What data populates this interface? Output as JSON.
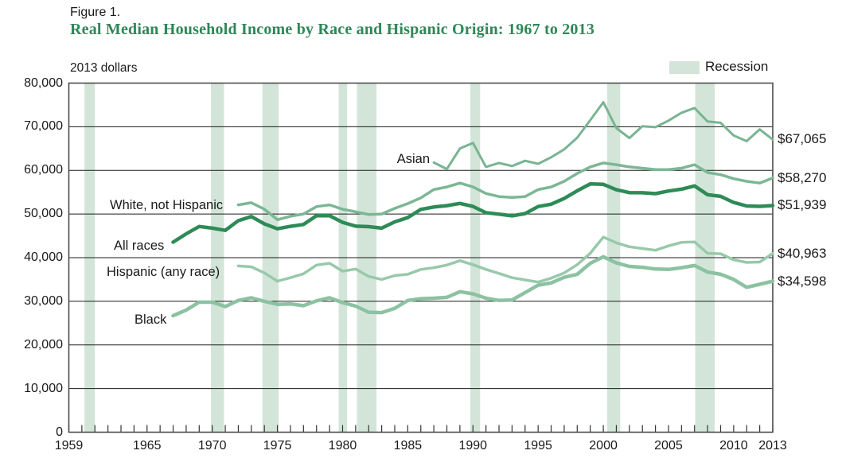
{
  "figure": {
    "label": "Figure 1.",
    "title": "Real Median Household Income by Race and Hispanic Origin: 1967 to 2013"
  },
  "legend": {
    "recession_label": "Recession"
  },
  "colors": {
    "title_green": "#2e8757",
    "all_races_line": "#2e8b57",
    "white_not_hispanic_line": "#7cb795",
    "asian_line": "#79b493",
    "hispanic_line": "#98c9aa",
    "black_line": "#8cc2a2",
    "recession_band": "#d3e5d9",
    "gridline": "#1a1a1a",
    "plot_border": "#4d4d4d",
    "tick": "#333333",
    "text": "#1a1a1a"
  },
  "chart_data": {
    "type": "line",
    "title": "Real Median Household Income by Race and Hispanic Origin: 1967 to 2013",
    "unit_label": "2013 dollars",
    "xlabel": "",
    "ylabel": "2013 dollars",
    "x_range": [
      1959,
      2013
    ],
    "ylim": [
      0,
      80000
    ],
    "grid": true,
    "legend_position": "top-right",
    "y_ticks": [
      {
        "value": 0,
        "label": "0"
      },
      {
        "value": 10000,
        "label": "10,000"
      },
      {
        "value": 20000,
        "label": "20,000"
      },
      {
        "value": 30000,
        "label": "30,000"
      },
      {
        "value": 40000,
        "label": "40,000"
      },
      {
        "value": 50000,
        "label": "50,000"
      },
      {
        "value": 60000,
        "label": "60,000"
      },
      {
        "value": 70000,
        "label": "70,000"
      },
      {
        "value": 80000,
        "label": "80,000"
      }
    ],
    "x_tick_years": [
      1959,
      1965,
      1970,
      1975,
      1980,
      1985,
      1990,
      1995,
      2000,
      2005,
      2010,
      2013
    ],
    "x_tick_labels": [
      "1959",
      "1965",
      "1970",
      "1975",
      "1980",
      "1985",
      "1990",
      "1995",
      "2000",
      "2005",
      "2010",
      "2013"
    ],
    "minor_tick_step_years": 1,
    "recessions": [
      [
        1960.2,
        1961.0
      ],
      [
        1969.9,
        1970.9
      ],
      [
        1973.85,
        1975.1
      ],
      [
        1979.7,
        1980.35
      ],
      [
        1981.1,
        1982.6
      ],
      [
        1989.8,
        1990.55
      ],
      [
        2000.3,
        2001.3
      ],
      [
        2007.05,
        2008.55
      ]
    ],
    "series": [
      {
        "name": "asian",
        "label": "Asian",
        "start_year": 1987,
        "end_label": "$67,065",
        "color_key": "asian_line",
        "stroke_width": 3,
        "values": [
          61800,
          60300,
          65000,
          66300,
          60800,
          61700,
          61000,
          62200,
          61500,
          63000,
          64800,
          67500,
          71500,
          75600,
          69700,
          67400,
          70100,
          69900,
          71400,
          73200,
          74300,
          71200,
          70900,
          68000,
          66700,
          69400,
          67065
        ]
      },
      {
        "name": "white-not-hispanic",
        "label": "White, not Hispanic",
        "start_year": 1972,
        "end_label": "$58,270",
        "color_key": "white_not_hispanic_line",
        "stroke_width": 3.5,
        "values": [
          52100,
          52600,
          51100,
          48700,
          49500,
          50000,
          51700,
          52100,
          51100,
          50500,
          49900,
          50000,
          51300,
          52400,
          53700,
          55600,
          56200,
          57100,
          56200,
          54700,
          54000,
          53800,
          54000,
          55600,
          56200,
          57500,
          59300,
          60800,
          61700,
          61300,
          60800,
          60500,
          60200,
          60200,
          60500,
          61300,
          59500,
          59000,
          58100,
          57500,
          57100,
          58270
        ]
      },
      {
        "name": "hispanic",
        "label": "Hispanic (any race)",
        "start_year": 1972,
        "end_label": "$40,963",
        "color_key": "hispanic_line",
        "stroke_width": 3.5,
        "values": [
          38100,
          37900,
          36500,
          34600,
          35400,
          36300,
          38300,
          38700,
          36900,
          37400,
          35700,
          35000,
          35900,
          36200,
          37300,
          37700,
          38300,
          39300,
          38400,
          37300,
          36400,
          35400,
          34900,
          34400,
          35300,
          36500,
          38400,
          41000,
          44700,
          43400,
          42500,
          42100,
          41700,
          42700,
          43500,
          43600,
          41000,
          40900,
          39500,
          38900,
          39000,
          40963
        ]
      },
      {
        "name": "black",
        "label": "Black",
        "start_year": 1967,
        "end_label": "$34,598",
        "color_key": "black_line",
        "stroke_width": 4.5,
        "values": [
          26700,
          28000,
          29800,
          29800,
          28800,
          30200,
          30800,
          30000,
          29300,
          29400,
          29000,
          30100,
          30800,
          29700,
          28900,
          27500,
          27400,
          28400,
          30200,
          30600,
          30700,
          30900,
          32200,
          31700,
          30700,
          30200,
          30300,
          32000,
          33700,
          34200,
          35500,
          36200,
          38700,
          40200,
          38800,
          38000,
          37800,
          37400,
          37300,
          37700,
          38200,
          36700,
          36200,
          35000,
          33200,
          33900,
          34598
        ]
      },
      {
        "name": "all-races",
        "label": "All races",
        "start_year": 1967,
        "end_label": "$51,939",
        "color_key": "all_races_line",
        "stroke_width": 4.5,
        "values": [
          43558,
          45440,
          47146,
          46759,
          46255,
          48473,
          49419,
          47744,
          46616,
          47174,
          47605,
          49613,
          49630,
          48085,
          47216,
          47111,
          46757,
          48199,
          49190,
          51055,
          51611,
          51915,
          52432,
          51735,
          50293,
          49959,
          49594,
          50090,
          51719,
          52240,
          53551,
          55320,
          56895,
          56800,
          55562,
          54913,
          54865,
          54674,
          55278,
          55689,
          56436,
          54423,
          54059,
          52646,
          51842,
          51758,
          51939
        ]
      }
    ]
  }
}
